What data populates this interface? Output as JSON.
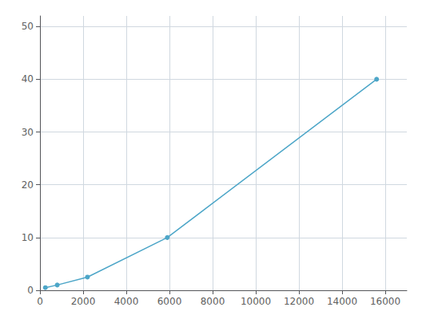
{
  "chart_data": {
    "type": "line",
    "x": [
      250,
      800,
      2200,
      5900,
      15600
    ],
    "values": [
      0.5,
      1.0,
      2.5,
      10.0,
      40.0
    ],
    "color": "#4da6c8",
    "marker": "circle",
    "xlim": [
      0,
      17000
    ],
    "ylim": [
      0,
      52
    ],
    "xticks": [
      0,
      2000,
      4000,
      6000,
      8000,
      10000,
      12000,
      14000,
      16000
    ],
    "yticks": [
      0,
      10,
      20,
      30,
      40,
      50
    ],
    "grid": true
  }
}
